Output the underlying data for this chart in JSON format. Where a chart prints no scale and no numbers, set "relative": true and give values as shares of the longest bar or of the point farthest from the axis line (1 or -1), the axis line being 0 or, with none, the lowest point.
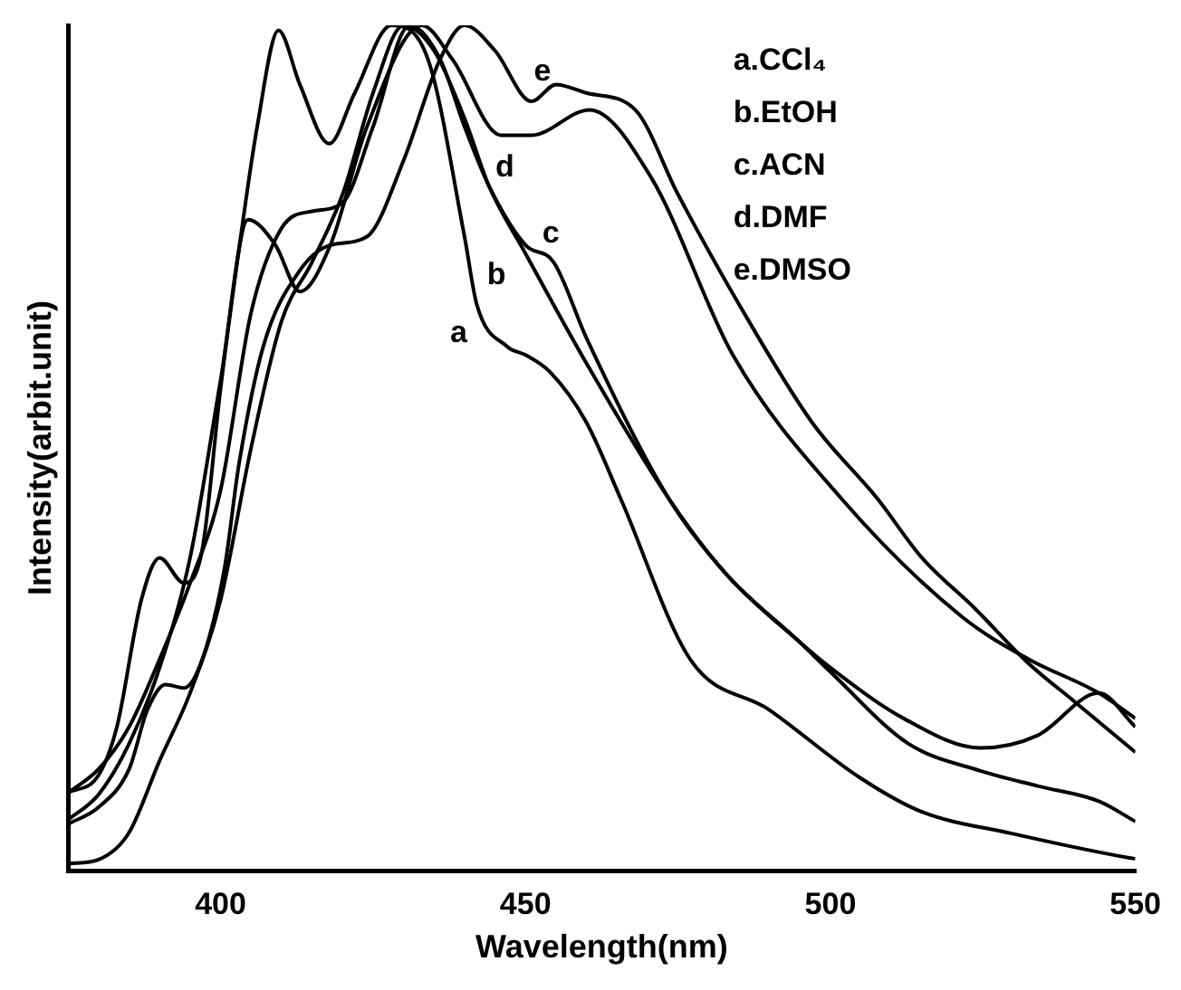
{
  "chart_data": {
    "type": "line",
    "relative": true,
    "xlabel": "Wavelength(nm)",
    "ylabel": "Intensity(arbit.unit)",
    "xlim": [
      375,
      550
    ],
    "xticks": [
      400,
      450,
      500,
      550
    ],
    "grid": false,
    "legend": false,
    "marker": "none",
    "line_style": "solid",
    "annotations": [
      "a.CCl₄",
      "b.EtOH",
      "c.ACN",
      "d.DMF",
      "e.DMSO"
    ],
    "series": [
      {
        "name": "a",
        "color": "#000000",
        "x": [
          375,
          380,
          383,
          387,
          390,
          394,
          397,
          400,
          403.6,
          406,
          409.5,
          413,
          417.8,
          422,
          428,
          434,
          440,
          442,
          447,
          450,
          454,
          460,
          465.6,
          477,
          490,
          504.8,
          514.8,
          529.6,
          549,
          550
        ],
        "values": [
          0.092,
          0.113,
          0.17,
          0.32,
          0.37,
          0.34,
          0.38,
          0.57,
          0.765,
          0.88,
          0.994,
          0.93,
          0.86,
          0.92,
          1,
          0.96,
          0.75,
          0.67,
          0.62,
          0.61,
          0.59,
          0.53,
          0.44,
          0.25,
          0.19,
          0.11,
          0.07,
          0.044,
          0.015,
          0.014
        ]
      },
      {
        "name": "b",
        "color": "#000000",
        "x": [
          375,
          380,
          385,
          390,
          395,
          400,
          405,
          410,
          415,
          420,
          425,
          430,
          435,
          440,
          444,
          450,
          460,
          473.5,
          483,
          495,
          500,
          512.8,
          524.6,
          534,
          544,
          550
        ],
        "values": [
          0.008,
          0.013,
          0.045,
          0.13,
          0.21,
          0.32,
          0.5,
          0.65,
          0.72,
          0.8,
          0.92,
          1,
          0.97,
          0.89,
          0.81,
          0.73,
          0.6,
          0.44,
          0.35,
          0.27,
          0.235,
          0.15,
          0.118,
          0.1,
          0.082,
          0.058
        ]
      },
      {
        "name": "c",
        "color": "#000000",
        "x": [
          375,
          380,
          385,
          390,
          395,
          400,
          405,
          410,
          415,
          420,
          425,
          431,
          436,
          440,
          444,
          450,
          454.6,
          460,
          473.5,
          483,
          495,
          500,
          512,
          524.6,
          534,
          544,
          550
        ],
        "values": [
          0.092,
          0.12,
          0.17,
          0.25,
          0.34,
          0.45,
          0.66,
          0.76,
          0.78,
          0.79,
          0.88,
          1,
          0.96,
          0.88,
          0.81,
          0.74,
          0.72,
          0.63,
          0.44,
          0.35,
          0.27,
          0.24,
          0.18,
          0.145,
          0.16,
          0.21,
          0.17
        ]
      },
      {
        "name": "d",
        "color": "#000000",
        "x": [
          375,
          380,
          385,
          390,
          395,
          400,
          404.5,
          409,
          413,
          418,
          424,
          433,
          438,
          446,
          451,
          460.5,
          470.6,
          484,
          501.8,
          521.6,
          532.5,
          544,
          550
        ],
        "values": [
          0.06,
          0.09,
          0.15,
          0.24,
          0.37,
          0.58,
          0.77,
          0.74,
          0.685,
          0.74,
          0.88,
          1,
          0.96,
          0.87,
          0.87,
          0.9,
          0.82,
          0.61,
          0.44,
          0.3,
          0.25,
          0.21,
          0.18
        ]
      },
      {
        "name": "e",
        "color": "#000000",
        "x": [
          375,
          380,
          385,
          388,
          391,
          394,
          397,
          400.7,
          403,
          407,
          413,
          418,
          424,
          430,
          436,
          440,
          445,
          451,
          455,
          460,
          468,
          475,
          485,
          497,
          507.7,
          515,
          523.7,
          532.5,
          540,
          550
        ],
        "values": [
          0.055,
          0.075,
          0.12,
          0.19,
          0.22,
          0.216,
          0.25,
          0.36,
          0.48,
          0.62,
          0.71,
          0.74,
          0.75,
          0.84,
          0.96,
          1,
          0.97,
          0.91,
          0.93,
          0.92,
          0.9,
          0.8,
          0.67,
          0.53,
          0.44,
          0.37,
          0.31,
          0.245,
          0.2,
          0.14
        ]
      }
    ]
  }
}
